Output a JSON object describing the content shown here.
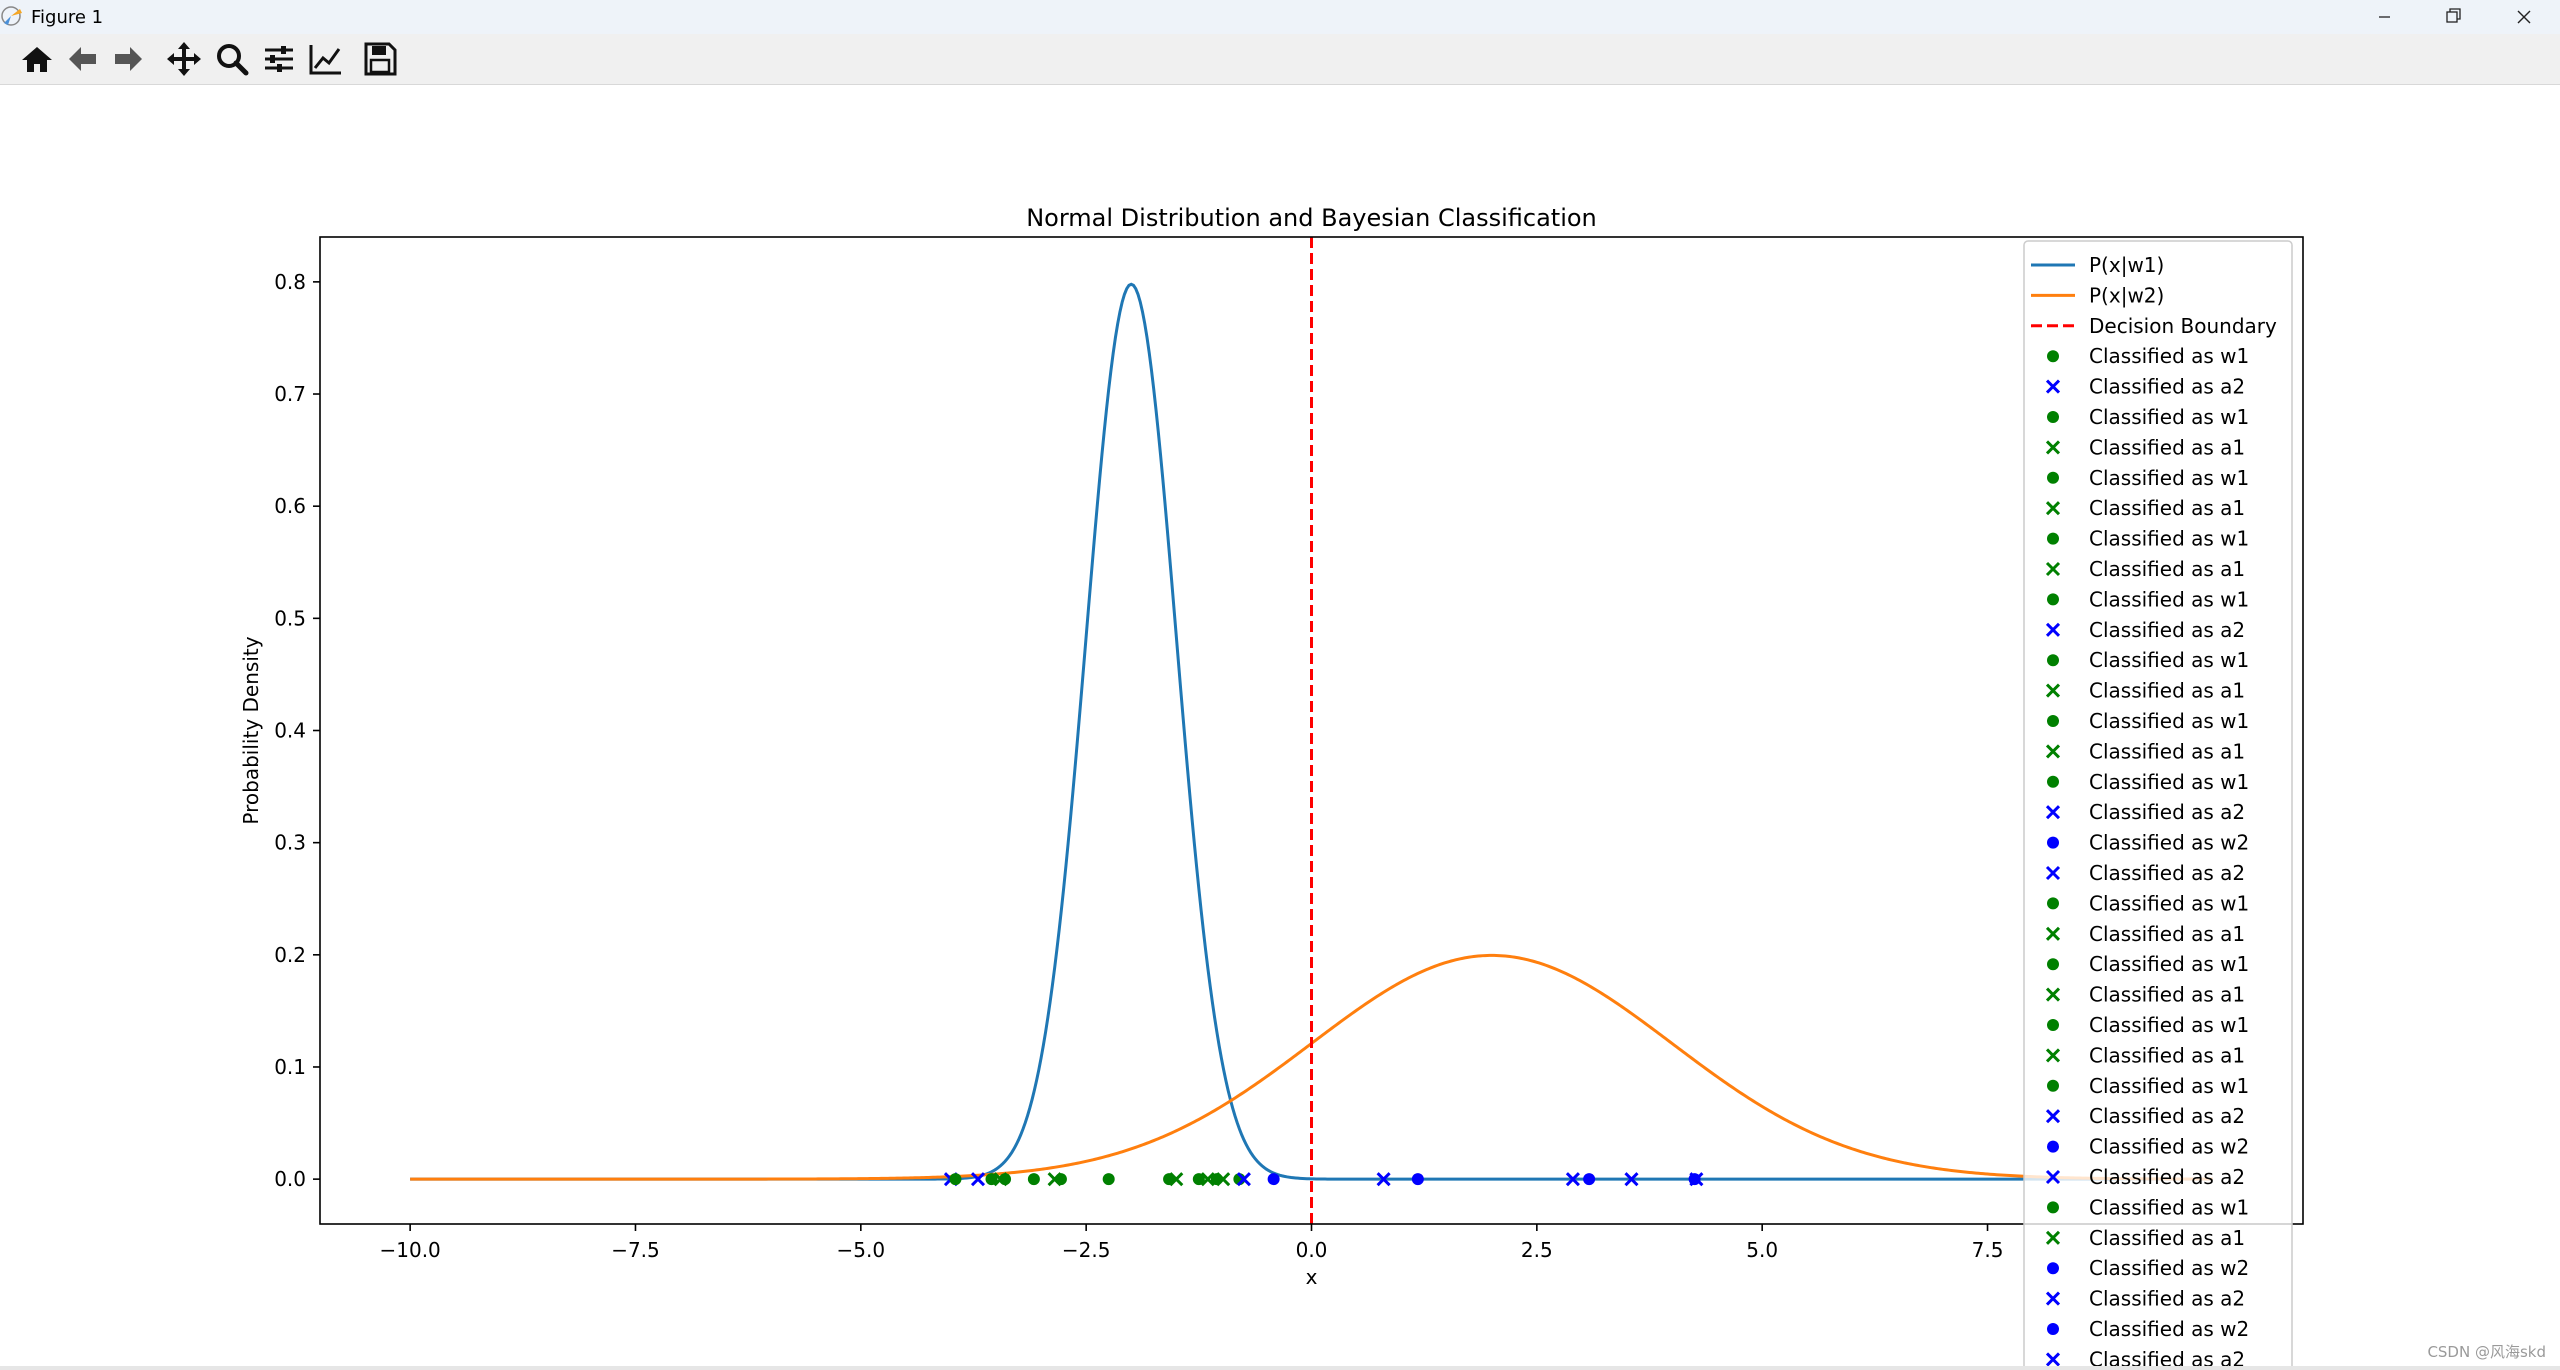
{
  "window": {
    "title": "Figure 1",
    "controls": [
      "minimize",
      "maximize",
      "close"
    ]
  },
  "toolbar": {
    "buttons": [
      {
        "icon": "home-icon",
        "tooltip": "Home"
      },
      {
        "icon": "back-arrow-icon",
        "tooltip": "Back"
      },
      {
        "icon": "forward-arrow-icon",
        "tooltip": "Forward"
      },
      {
        "icon": "pan-icon",
        "tooltip": "Pan"
      },
      {
        "icon": "zoom-icon",
        "tooltip": "Zoom"
      },
      {
        "icon": "subplots-icon",
        "tooltip": "Configure subplots"
      },
      {
        "icon": "edit-curve-icon",
        "tooltip": "Edit axis"
      },
      {
        "icon": "save-icon",
        "tooltip": "Save"
      }
    ]
  },
  "watermark": "CSDN @风海skd",
  "chart_data": {
    "type": "line",
    "title": "Normal Distribution and Bayesian Classification",
    "xlabel": "x",
    "ylabel": "Probability Density",
    "xlim": [
      -11.0,
      11.0
    ],
    "ylim": [
      -0.04,
      0.84
    ],
    "xticks": [
      -10.0,
      -7.5,
      -5.0,
      -2.5,
      0.0,
      2.5,
      5.0,
      7.5
    ],
    "xtick_labels": [
      "−10.0",
      "−7.5",
      "−5.0",
      "−2.5",
      "0.0",
      "2.5",
      "5.0",
      "7.5"
    ],
    "yticks": [
      0.0,
      0.1,
      0.2,
      0.3,
      0.4,
      0.5,
      0.6,
      0.7,
      0.8
    ],
    "ytick_labels": [
      "0.0",
      "0.1",
      "0.2",
      "0.3",
      "0.4",
      "0.5",
      "0.6",
      "0.7",
      "0.8"
    ],
    "grid": false,
    "legend_position": "top-right",
    "series": [
      {
        "name": "P(x|w1)",
        "kind": "normal_pdf",
        "mean": -2.0,
        "std": 0.5,
        "x_range": [
          -10,
          10
        ],
        "color": "#1f77b4"
      },
      {
        "name": "P(x|w2)",
        "kind": "normal_pdf",
        "mean": 2.0,
        "std": 2.0,
        "x_range": [
          -10,
          10
        ],
        "color": "#ff7f0e"
      },
      {
        "name": "Decision Boundary",
        "kind": "vline",
        "x": 0.0,
        "color": "#ff0000",
        "style": "dashed"
      }
    ],
    "points": [
      {
        "x": -4.0,
        "y": 0,
        "marker": "x",
        "color": "#0000ff"
      },
      {
        "x": -3.95,
        "y": 0,
        "marker": "o",
        "color": "#008000"
      },
      {
        "x": -3.7,
        "y": 0,
        "marker": "x",
        "color": "#0000ff"
      },
      {
        "x": -3.55,
        "y": 0,
        "marker": "o",
        "color": "#008000"
      },
      {
        "x": -3.45,
        "y": 0,
        "marker": "x",
        "color": "#008000"
      },
      {
        "x": -3.4,
        "y": 0,
        "marker": "o",
        "color": "#008000"
      },
      {
        "x": -3.08,
        "y": 0,
        "marker": "o",
        "color": "#008000"
      },
      {
        "x": -2.85,
        "y": 0,
        "marker": "x",
        "color": "#008000"
      },
      {
        "x": -2.78,
        "y": 0,
        "marker": "o",
        "color": "#008000"
      },
      {
        "x": -2.25,
        "y": 0,
        "marker": "o",
        "color": "#008000"
      },
      {
        "x": -1.58,
        "y": 0,
        "marker": "o",
        "color": "#008000"
      },
      {
        "x": -1.5,
        "y": 0,
        "marker": "x",
        "color": "#008000"
      },
      {
        "x": -1.25,
        "y": 0,
        "marker": "o",
        "color": "#008000"
      },
      {
        "x": -1.15,
        "y": 0,
        "marker": "x",
        "color": "#008000"
      },
      {
        "x": -1.05,
        "y": 0,
        "marker": "o",
        "color": "#008000"
      },
      {
        "x": -0.98,
        "y": 0,
        "marker": "x",
        "color": "#008000"
      },
      {
        "x": -0.8,
        "y": 0,
        "marker": "o",
        "color": "#008000"
      },
      {
        "x": -0.75,
        "y": 0,
        "marker": "x",
        "color": "#0000ff"
      },
      {
        "x": -0.42,
        "y": 0,
        "marker": "o",
        "color": "#0000ff"
      },
      {
        "x": 0.8,
        "y": 0,
        "marker": "x",
        "color": "#0000ff"
      },
      {
        "x": 1.18,
        "y": 0,
        "marker": "o",
        "color": "#0000ff"
      },
      {
        "x": 2.9,
        "y": 0,
        "marker": "x",
        "color": "#0000ff"
      },
      {
        "x": 3.08,
        "y": 0,
        "marker": "o",
        "color": "#0000ff"
      },
      {
        "x": 3.55,
        "y": 0,
        "marker": "x",
        "color": "#0000ff"
      },
      {
        "x": 4.25,
        "y": 0,
        "marker": "o",
        "color": "#0000ff"
      },
      {
        "x": 4.27,
        "y": 0,
        "marker": "x",
        "color": "#0000ff"
      }
    ],
    "legend_entries": [
      {
        "label": "P(x|w1)",
        "kind": "line",
        "color": "#1f77b4"
      },
      {
        "label": "P(x|w2)",
        "kind": "line",
        "color": "#ff7f0e"
      },
      {
        "label": "Decision Boundary",
        "kind": "dash",
        "color": "#ff0000"
      },
      {
        "label": "Classified as w1",
        "kind": "o",
        "color": "#008000"
      },
      {
        "label": "Classified as a2",
        "kind": "x",
        "color": "#0000ff"
      },
      {
        "label": "Classified as w1",
        "kind": "o",
        "color": "#008000"
      },
      {
        "label": "Classified as a1",
        "kind": "x",
        "color": "#008000"
      },
      {
        "label": "Classified as w1",
        "kind": "o",
        "color": "#008000"
      },
      {
        "label": "Classified as a1",
        "kind": "x",
        "color": "#008000"
      },
      {
        "label": "Classified as w1",
        "kind": "o",
        "color": "#008000"
      },
      {
        "label": "Classified as a1",
        "kind": "x",
        "color": "#008000"
      },
      {
        "label": "Classified as w1",
        "kind": "o",
        "color": "#008000"
      },
      {
        "label": "Classified as a2",
        "kind": "x",
        "color": "#0000ff"
      },
      {
        "label": "Classified as w1",
        "kind": "o",
        "color": "#008000"
      },
      {
        "label": "Classified as a1",
        "kind": "x",
        "color": "#008000"
      },
      {
        "label": "Classified as w1",
        "kind": "o",
        "color": "#008000"
      },
      {
        "label": "Classified as a1",
        "kind": "x",
        "color": "#008000"
      },
      {
        "label": "Classified as w1",
        "kind": "o",
        "color": "#008000"
      },
      {
        "label": "Classified as a2",
        "kind": "x",
        "color": "#0000ff"
      },
      {
        "label": "Classified as w2",
        "kind": "o",
        "color": "#0000ff"
      },
      {
        "label": "Classified as a2",
        "kind": "x",
        "color": "#0000ff"
      },
      {
        "label": "Classified as w1",
        "kind": "o",
        "color": "#008000"
      },
      {
        "label": "Classified as a1",
        "kind": "x",
        "color": "#008000"
      },
      {
        "label": "Classified as w1",
        "kind": "o",
        "color": "#008000"
      },
      {
        "label": "Classified as a1",
        "kind": "x",
        "color": "#008000"
      },
      {
        "label": "Classified as w1",
        "kind": "o",
        "color": "#008000"
      },
      {
        "label": "Classified as a1",
        "kind": "x",
        "color": "#008000"
      },
      {
        "label": "Classified as w1",
        "kind": "o",
        "color": "#008000"
      },
      {
        "label": "Classified as a2",
        "kind": "x",
        "color": "#0000ff"
      },
      {
        "label": "Classified as w2",
        "kind": "o",
        "color": "#0000ff"
      },
      {
        "label": "Classified as a2",
        "kind": "x",
        "color": "#0000ff"
      },
      {
        "label": "Classified as w1",
        "kind": "o",
        "color": "#008000"
      },
      {
        "label": "Classified as a1",
        "kind": "x",
        "color": "#008000"
      },
      {
        "label": "Classified as w2",
        "kind": "o",
        "color": "#0000ff"
      },
      {
        "label": "Classified as a2",
        "kind": "x",
        "color": "#0000ff"
      },
      {
        "label": "Classified as w2",
        "kind": "o",
        "color": "#0000ff"
      },
      {
        "label": "Classified as a2",
        "kind": "x",
        "color": "#0000ff"
      }
    ]
  }
}
